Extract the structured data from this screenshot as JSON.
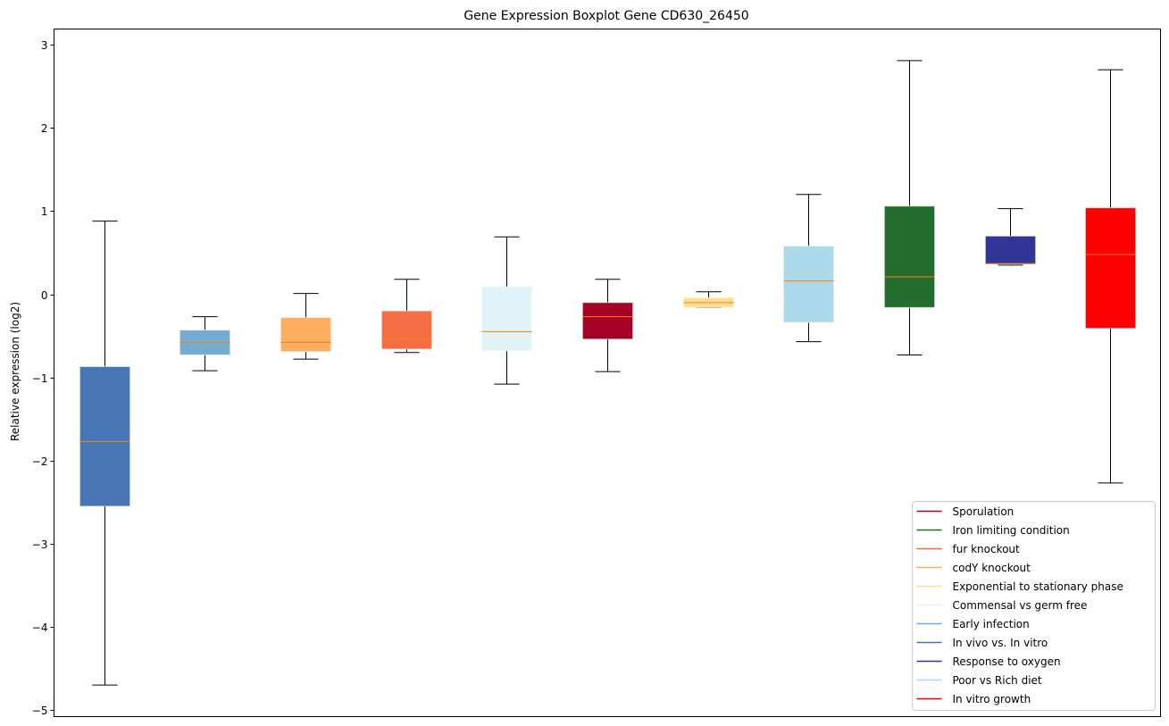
{
  "chart_data": {
    "type": "boxplot",
    "title": "Gene Expression Boxplot Gene CD630_26450",
    "xlabel": "",
    "ylabel": "Relative expression (log2)",
    "ylim": [
      -5.08,
      3.19
    ],
    "xlim": [
      0.5,
      11.5
    ],
    "yticks": [
      -5,
      -4,
      -3,
      -2,
      -1,
      0,
      1,
      2,
      3
    ],
    "ytick_labels": [
      "−5",
      "−4",
      "−3",
      "−2",
      "−1",
      "0",
      "1",
      "2",
      "3"
    ],
    "grid": false,
    "legend_position": "lower-right",
    "median_color": "#ff7f0e",
    "series": [
      {
        "name": "In vivo vs. In vitro",
        "color": "#4575b4",
        "whisker_low": -4.7,
        "q1": -2.55,
        "median": -1.77,
        "q3": -0.87,
        "whisker_high": 0.88
      },
      {
        "name": "Early infection",
        "color": "#74add1",
        "whisker_low": -0.92,
        "q1": -0.73,
        "median": -0.58,
        "q3": -0.43,
        "whisker_high": -0.27
      },
      {
        "name": "codY knockout",
        "color": "#fdae61",
        "whisker_low": -0.78,
        "q1": -0.69,
        "median": -0.58,
        "q3": -0.28,
        "whisker_high": 0.01
      },
      {
        "name": "fur knockout",
        "color": "#f46d43",
        "whisker_low": -0.7,
        "q1": -0.66,
        "median": -0.55,
        "q3": -0.2,
        "whisker_high": 0.18
      },
      {
        "name": "Commensal vs germ free",
        "color": "#e0f3f8",
        "whisker_low": -1.08,
        "q1": -0.68,
        "median": -0.45,
        "q3": 0.09,
        "whisker_high": 0.69
      },
      {
        "name": "Sporulation",
        "color": "#a50026",
        "whisker_low": -0.93,
        "q1": -0.54,
        "median": -0.27,
        "q3": -0.1,
        "whisker_high": 0.18
      },
      {
        "name": "Exponential to stationary phase",
        "color": "#fee090",
        "whisker_low": -0.16,
        "q1": -0.16,
        "median": -0.1,
        "q3": -0.04,
        "whisker_high": 0.03
      },
      {
        "name": "Poor vs Rich diet",
        "color": "#abd9e9",
        "whisker_low": -0.57,
        "q1": -0.34,
        "median": 0.16,
        "q3": 0.58,
        "whisker_high": 1.2
      },
      {
        "name": "Iron limiting condition",
        "color": "#246c2e",
        "whisker_low": -0.73,
        "q1": -0.16,
        "median": 0.21,
        "q3": 1.06,
        "whisker_high": 2.81
      },
      {
        "name": "Response to oxygen",
        "color": "#313695",
        "whisker_low": 0.35,
        "q1": 0.36,
        "median": 0.37,
        "q3": 0.7,
        "whisker_high": 1.03
      },
      {
        "name": "In vitro growth",
        "color": "#ff0000",
        "whisker_low": -2.27,
        "q1": -0.41,
        "median": 0.48,
        "q3": 1.04,
        "whisker_high": 2.7
      }
    ],
    "legend": [
      {
        "label": "Sporulation",
        "color": "#a50026"
      },
      {
        "label": "Iron limiting condition",
        "color": "#246c2e"
      },
      {
        "label": "fur knockout",
        "color": "#f46d43"
      },
      {
        "label": "codY knockout",
        "color": "#fdae61"
      },
      {
        "label": "Exponential to stationary phase",
        "color": "#fee090"
      },
      {
        "label": "Commensal vs germ free",
        "color": "#e0f3f8"
      },
      {
        "label": "Early infection",
        "color": "#74add1"
      },
      {
        "label": "In vivo vs. In vitro",
        "color": "#4575b4"
      },
      {
        "label": "Response to oxygen",
        "color": "#313695"
      },
      {
        "label": "Poor vs Rich diet",
        "color": "#abd9e9"
      },
      {
        "label": "In vitro growth",
        "color": "#ff0000"
      }
    ]
  }
}
